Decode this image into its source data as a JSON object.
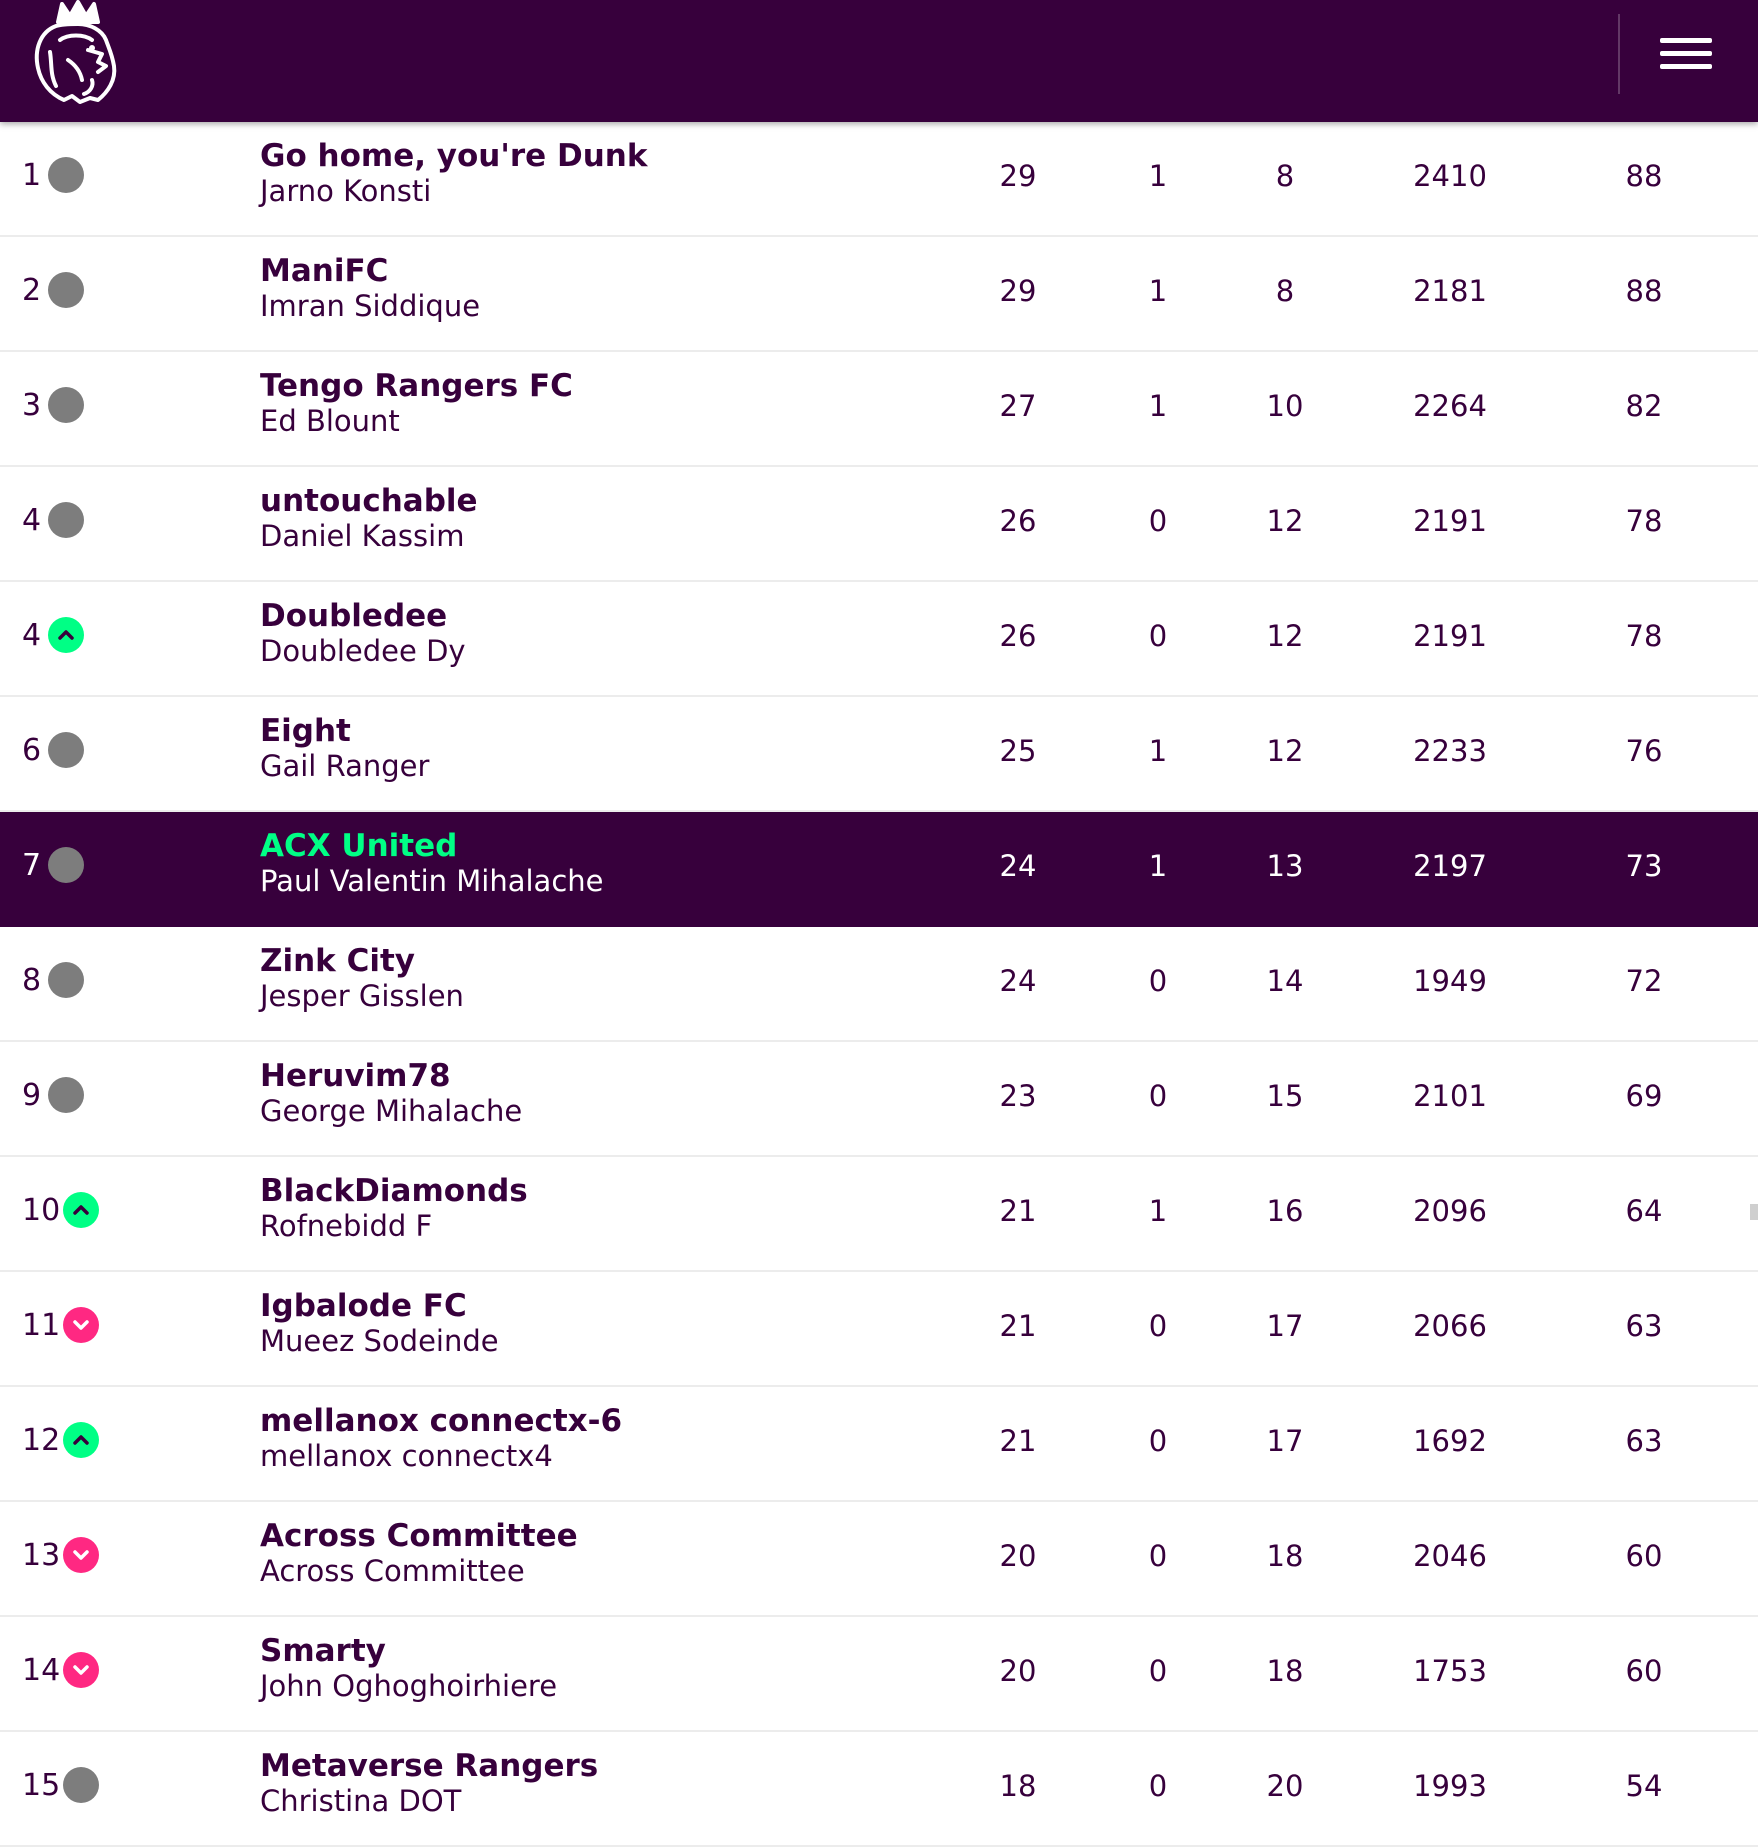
{
  "header": {
    "logo_icon": "premier-league-lion-icon",
    "menu_icon": "hamburger-menu-icon"
  },
  "colors": {
    "brand_purple": "#37003c",
    "up_green": "#00ff85",
    "down_pink": "#ff2882",
    "neutral_gray": "#7d7d7d"
  },
  "standings": [
    {
      "rank": "1",
      "movement": "same",
      "team": "Go home, you're Dunk",
      "manager": "Jarno Konsti",
      "c1": "29",
      "c2": "1",
      "c3": "8",
      "c4": "2410",
      "c5": "88"
    },
    {
      "rank": "2",
      "movement": "same",
      "team": "ManiFC",
      "manager": "Imran Siddique",
      "c1": "29",
      "c2": "1",
      "c3": "8",
      "c4": "2181",
      "c5": "88"
    },
    {
      "rank": "3",
      "movement": "same",
      "team": "Tengo Rangers FC",
      "manager": "Ed Blount",
      "c1": "27",
      "c2": "1",
      "c3": "10",
      "c4": "2264",
      "c5": "82"
    },
    {
      "rank": "4",
      "movement": "same",
      "team": "untouchable",
      "manager": "Daniel Kassim",
      "c1": "26",
      "c2": "0",
      "c3": "12",
      "c4": "2191",
      "c5": "78"
    },
    {
      "rank": "4",
      "movement": "up",
      "team": "Doubledee",
      "manager": "Doubledee Dy",
      "c1": "26",
      "c2": "0",
      "c3": "12",
      "c4": "2191",
      "c5": "78"
    },
    {
      "rank": "6",
      "movement": "same",
      "team": "Eight",
      "manager": "Gail Ranger",
      "c1": "25",
      "c2": "1",
      "c3": "12",
      "c4": "2233",
      "c5": "76"
    },
    {
      "rank": "7",
      "movement": "same",
      "team": "ACX United",
      "manager": "Paul Valentin Mihalache",
      "c1": "24",
      "c2": "1",
      "c3": "13",
      "c4": "2197",
      "c5": "73",
      "highlight": true
    },
    {
      "rank": "8",
      "movement": "same",
      "team": "Zink City",
      "manager": "Jesper Gisslen",
      "c1": "24",
      "c2": "0",
      "c3": "14",
      "c4": "1949",
      "c5": "72"
    },
    {
      "rank": "9",
      "movement": "same",
      "team": "Heruvim78",
      "manager": "George Mihalache",
      "c1": "23",
      "c2": "0",
      "c3": "15",
      "c4": "2101",
      "c5": "69"
    },
    {
      "rank": "10",
      "movement": "up",
      "team": "BlackDiamonds",
      "manager": "Rofnebidd F",
      "c1": "21",
      "c2": "1",
      "c3": "16",
      "c4": "2096",
      "c5": "64"
    },
    {
      "rank": "11",
      "movement": "down",
      "team": "Igbalode FC",
      "manager": "Mueez Sodeinde",
      "c1": "21",
      "c2": "0",
      "c3": "17",
      "c4": "2066",
      "c5": "63"
    },
    {
      "rank": "12",
      "movement": "up",
      "team": "mellanox connectx-6",
      "manager": "mellanox connectx4",
      "c1": "21",
      "c2": "0",
      "c3": "17",
      "c4": "1692",
      "c5": "63"
    },
    {
      "rank": "13",
      "movement": "down",
      "team": "Across Committee",
      "manager": "Across Committee",
      "c1": "20",
      "c2": "0",
      "c3": "18",
      "c4": "2046",
      "c5": "60"
    },
    {
      "rank": "14",
      "movement": "down",
      "team": "Smarty",
      "manager": "John Oghoghoirhiere",
      "c1": "20",
      "c2": "0",
      "c3": "18",
      "c4": "1753",
      "c5": "60"
    },
    {
      "rank": "15",
      "movement": "same",
      "team": "Metaverse Rangers",
      "manager": "Christina DOT",
      "c1": "18",
      "c2": "0",
      "c3": "20",
      "c4": "1993",
      "c5": "54"
    }
  ]
}
